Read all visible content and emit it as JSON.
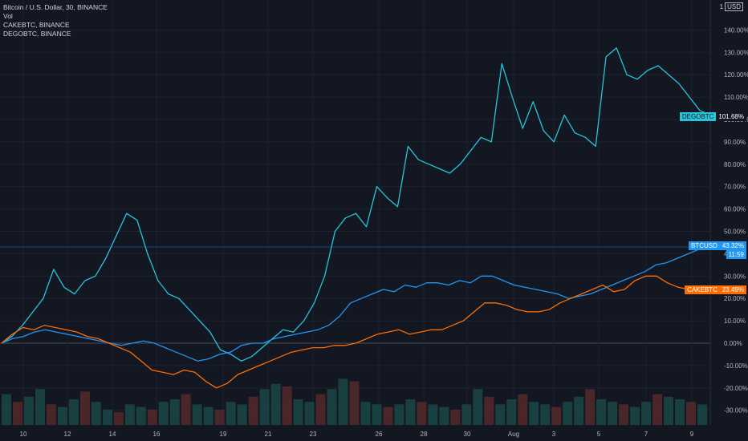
{
  "legend": {
    "main": "Bitcoin / U.S. Dollar, 30, BINANCE",
    "vol": "Vol",
    "cake": "CAKEBTC, BINANCE",
    "dego": "DEGOBTC, BINANCE"
  },
  "axis_unit": {
    "prefix": "1",
    "label": "USD"
  },
  "colors": {
    "background": "#131722",
    "grid": "#1e222d",
    "text": "#b2b5be",
    "btc": "#2196f3",
    "cake": "#ff6d00",
    "dego": "#26c6da",
    "vol_up": "#1b4b49",
    "vol_down": "#5a2a2c"
  },
  "chart_data": {
    "type": "line",
    "x_tick_labels": [
      "10",
      "12",
      "14",
      "16",
      "19",
      "21",
      "23",
      "26",
      "28",
      "30",
      "Aug",
      "3",
      "5",
      "7",
      "9"
    ],
    "y_tick_labels": [
      "140.00%",
      "130.00%",
      "120.00%",
      "110.00%",
      "100.00%",
      "90.00%",
      "80.00%",
      "70.00%",
      "60.00%",
      "50.00%",
      "40.00%",
      "30.00%",
      "20.00%",
      "10.00%",
      "0.00%",
      "-10.00%",
      "-20.00%",
      "-30.00%"
    ],
    "ylim": [
      -35,
      150
    ],
    "series": [
      {
        "name": "DEGOBTC",
        "last_value_label": "101.68%",
        "values": [
          0,
          3,
          8,
          14,
          20,
          33,
          25,
          22,
          28,
          30,
          38,
          48,
          58,
          55,
          40,
          28,
          22,
          20,
          15,
          10,
          5,
          -3,
          -5,
          -8,
          -6,
          -2,
          2,
          6,
          5,
          10,
          18,
          30,
          50,
          56,
          58,
          52,
          70,
          65,
          61,
          88,
          82,
          80,
          78,
          76,
          80,
          86,
          92,
          90,
          125,
          110,
          96,
          108,
          95,
          90,
          102,
          94,
          92,
          88,
          128,
          132,
          120,
          118,
          122,
          124,
          120,
          116,
          110,
          104,
          102
        ],
        "values_extended_note": ""
      },
      {
        "name": "BTCUSD",
        "last_value_label": "43.32%",
        "sublabel": "11:59",
        "values": [
          0,
          2,
          3,
          5,
          6,
          5,
          4,
          3,
          2,
          1,
          0,
          -1,
          0,
          1,
          0,
          -2,
          -4,
          -6,
          -8,
          -7,
          -5,
          -4,
          -1,
          0,
          0,
          2,
          3,
          4,
          5,
          6,
          8,
          12,
          18,
          20,
          22,
          24,
          23,
          26,
          25,
          27,
          27,
          26,
          28,
          27,
          30,
          30,
          28,
          26,
          25,
          24,
          23,
          22,
          20,
          21,
          22,
          24,
          26,
          28,
          30,
          32,
          35,
          36,
          38,
          40,
          42,
          43
        ]
      },
      {
        "name": "CAKEBTC",
        "last_value_label": "23.49%",
        "values": [
          0,
          4,
          7,
          6,
          8,
          7,
          6,
          5,
          3,
          2,
          0,
          -2,
          -4,
          -8,
          -12,
          -13,
          -14,
          -12,
          -13,
          -17,
          -20,
          -18,
          -14,
          -12,
          -10,
          -8,
          -6,
          -4,
          -3,
          -2,
          -2,
          -1,
          -1,
          0,
          2,
          4,
          5,
          6,
          4,
          5,
          6,
          6,
          8,
          10,
          14,
          18,
          18,
          17,
          15,
          14,
          14,
          15,
          18,
          20,
          22,
          24,
          26,
          23,
          24,
          28,
          30,
          30,
          27,
          25,
          24,
          23,
          23
        ]
      },
      {
        "name": "Vol",
        "values": [
          12,
          9,
          11,
          14,
          8,
          7,
          10,
          13,
          9,
          6,
          5,
          8,
          7,
          6,
          9,
          10,
          12,
          8,
          7,
          6,
          9,
          8,
          11,
          14,
          16,
          15,
          10,
          9,
          12,
          14,
          18,
          17,
          9,
          8,
          7,
          8,
          10,
          9,
          8,
          7,
          6,
          8,
          14,
          11,
          8,
          10,
          12,
          9,
          8,
          7,
          9,
          11,
          14,
          10,
          9,
          8,
          7,
          9,
          12,
          11,
          10,
          9,
          8
        ]
      }
    ]
  }
}
